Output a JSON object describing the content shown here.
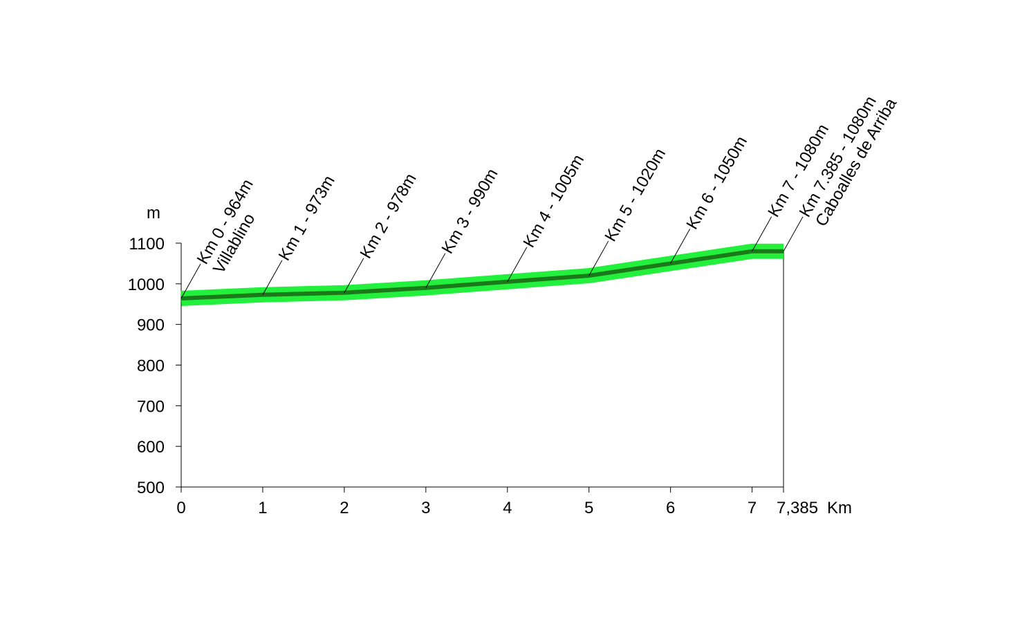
{
  "chart_data": {
    "type": "line",
    "x": [
      0,
      1,
      2,
      3,
      4,
      5,
      6,
      7,
      7.385
    ],
    "series": [
      {
        "name": "Altitude",
        "color": "#1a7a1a",
        "band_color": "#22f03c",
        "values": [
          964,
          973,
          978,
          990,
          1005,
          1020,
          1050,
          1080,
          1080
        ]
      }
    ],
    "annotations": [
      [
        "Km 0 - 964m",
        "Villablino"
      ],
      [
        "Km 1 - 973m"
      ],
      [
        "Km 2 - 978m"
      ],
      [
        "Km 3 - 990m"
      ],
      [
        "Km 4 - 1005m"
      ],
      [
        "Km 5 - 1020m"
      ],
      [
        "Km 6 - 1050m"
      ],
      [
        "Km 7 - 1080m"
      ],
      [
        "Km 7.385 - 1080m",
        "Caboalles de Arriba"
      ]
    ],
    "xlabel": "Km",
    "ylabel": "m",
    "xlim": [
      0,
      7.385
    ],
    "xticks": [
      0,
      1,
      2,
      3,
      4,
      5,
      6,
      7,
      {
        "value": 7.385,
        "label": "7,385"
      }
    ],
    "ylim": [
      500,
      1100
    ],
    "yticks": [
      500,
      600,
      700,
      800,
      900,
      1000,
      1100
    ]
  }
}
